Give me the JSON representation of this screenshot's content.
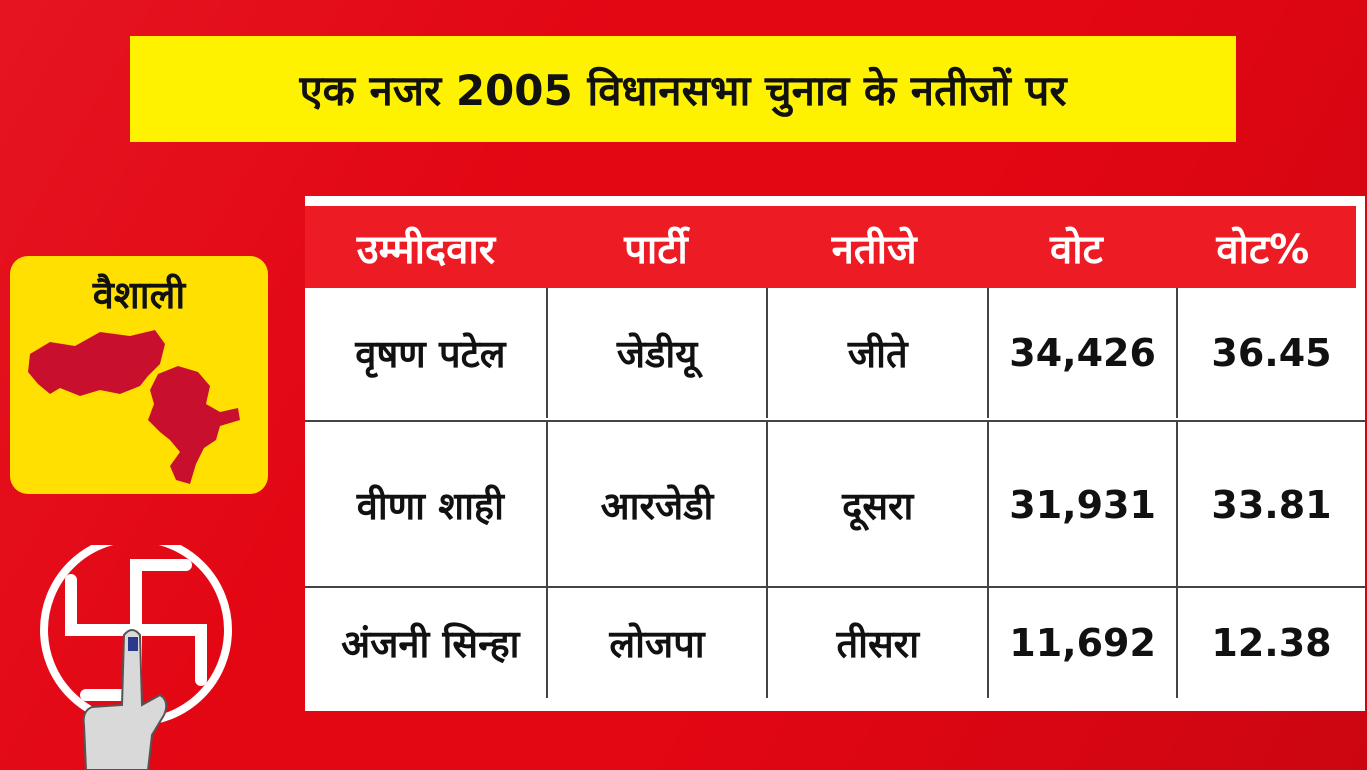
{
  "title": "एक नजर 2005 विधानसभा चुनाव के नतीजों पर",
  "district": {
    "name": "वैशाली",
    "map_icon": "district-map-icon",
    "map_color": "#c8102e"
  },
  "symbol": {
    "icon": "voting-swastik-finger-icon"
  },
  "colors": {
    "background": "#e30613",
    "banner": "#fff200",
    "header": "#ed1c24",
    "card": "#ffe000"
  },
  "table": {
    "headers": [
      "उम्मीदवार",
      "पार्टी",
      "नतीजे",
      "वोट",
      "वोट%"
    ],
    "rows": [
      [
        "वृषण पटेल",
        "जेडीयू",
        "जीते",
        "34,426",
        "36.45"
      ],
      [
        "वीणा शाही",
        "आरजेडी",
        "दूसरा",
        "31,931",
        "33.81"
      ],
      [
        "अंजनी सिन्हा",
        "लोजपा",
        "तीसरा",
        "11,692",
        "12.38"
      ]
    ]
  }
}
